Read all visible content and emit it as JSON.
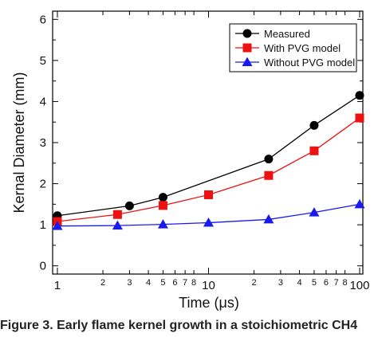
{
  "chart_data": {
    "type": "line",
    "xlabel": "Time (μs)",
    "ylabel": "Kernal Diameter (mm)",
    "xscale": "log",
    "xlim": [
      0.93,
      105
    ],
    "ylim": [
      -0.2,
      6.2
    ],
    "grid": false,
    "legend_position": "top-right",
    "x_major_ticks": [
      1,
      10,
      100
    ],
    "x_major_tick_labels": [
      "1",
      "10",
      "100"
    ],
    "x_minor_ticks": [
      2,
      3,
      4,
      5,
      6,
      7,
      8,
      20,
      30,
      40,
      50,
      60,
      70,
      80
    ],
    "x_minor_tick_labels": [
      "2",
      "3",
      "4",
      "5",
      "6",
      "7",
      "8",
      "2",
      "3",
      "4",
      "5",
      "6",
      "7",
      "8"
    ],
    "y_ticks": [
      0,
      1,
      2,
      3,
      4,
      5,
      6
    ],
    "y_tick_labels": [
      "0",
      "1",
      "2",
      "3",
      "4",
      "5",
      "6"
    ],
    "series": [
      {
        "name": "Measured",
        "color": "#000000",
        "marker": "circle",
        "x": [
          1,
          3,
          5,
          25,
          50,
          100
        ],
        "y": [
          1.22,
          1.46,
          1.67,
          2.6,
          3.42,
          4.15
        ]
      },
      {
        "name": "With PVG model",
        "color": "#ee1111",
        "marker": "square",
        "x": [
          1,
          2.5,
          5,
          10,
          25,
          50,
          100
        ],
        "y": [
          1.08,
          1.25,
          1.47,
          1.73,
          2.2,
          2.8,
          3.6
        ]
      },
      {
        "name": "Without PVG model",
        "color": "#1a1aee",
        "marker": "triangle",
        "x": [
          1,
          2.5,
          5,
          10,
          25,
          50,
          100
        ],
        "y": [
          0.97,
          0.98,
          1.01,
          1.05,
          1.13,
          1.3,
          1.5
        ]
      }
    ]
  },
  "caption": "Figure 3. Early flame kernel growth in a stoichiometric CH4"
}
